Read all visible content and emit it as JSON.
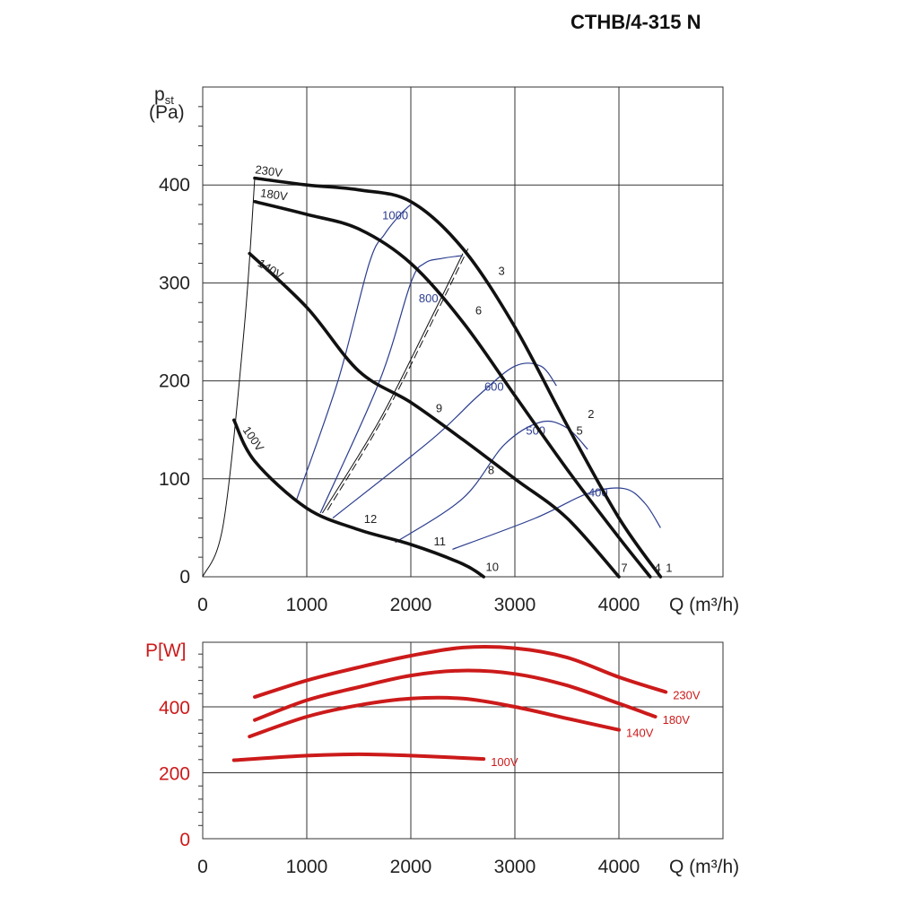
{
  "title": "CTHB/4-315 N",
  "chart_data": [
    {
      "type": "line",
      "ylabel": "p_st",
      "ylabel_main": "p",
      "ylabel_sub": "st",
      "yunit": "(Pa)",
      "xlabel": "Q (m³/h)",
      "xlim": [
        0,
        5000
      ],
      "ylim": [
        0,
        500
      ],
      "x_ticks": [
        0,
        1000,
        2000,
        3000,
        4000
      ],
      "y_ticks": [
        0,
        100,
        200,
        300,
        400
      ],
      "grid": true,
      "colors": {
        "fan_curve": "#111111",
        "efficiency": "#2b3d8f",
        "system": "#111111"
      },
      "series": [
        {
          "name": "230V",
          "label_at": [
            500,
            412
          ],
          "x": [
            500,
            1000,
            1500,
            2000,
            2500,
            3000,
            3500,
            4000,
            4400
          ],
          "y": [
            407,
            400,
            395,
            383,
            335,
            255,
            155,
            60,
            0
          ]
        },
        {
          "name": "180V",
          "label_at": [
            550,
            388
          ],
          "x": [
            500,
            1000,
            1500,
            2000,
            2500,
            3000,
            3500,
            4000,
            4300
          ],
          "y": [
            383,
            370,
            355,
            320,
            260,
            185,
            110,
            40,
            0
          ]
        },
        {
          "name": "140V",
          "label_at": [
            520,
            318
          ],
          "x": [
            450,
            1000,
            1500,
            2000,
            2500,
            3000,
            3500,
            4000
          ],
          "y": [
            330,
            275,
            210,
            178,
            140,
            100,
            60,
            0
          ]
        },
        {
          "name": "100V",
          "label_at": [
            380,
            150
          ],
          "x": [
            300,
            500,
            1000,
            1500,
            2000,
            2500,
            2700
          ],
          "y": [
            160,
            118,
            70,
            48,
            33,
            13,
            0
          ]
        }
      ],
      "efficiency_curves": [
        {
          "label": "1000",
          "label_at": [
            1850,
            365
          ],
          "x": [
            900,
            1300,
            1600,
            1750,
            1900,
            2000
          ],
          "y": [
            78,
            200,
            320,
            350,
            370,
            380
          ]
        },
        {
          "label": "800",
          "label_at": [
            2170,
            280
          ],
          "x": [
            1130,
            1700,
            2000,
            2130,
            2300,
            2500
          ],
          "y": [
            65,
            200,
            300,
            320,
            325,
            328
          ]
        },
        {
          "label": "600",
          "label_at": [
            2800,
            190
          ],
          "x": [
            1250,
            2200,
            2650,
            3000,
            3250,
            3400
          ],
          "y": [
            60,
            140,
            185,
            215,
            215,
            195
          ]
        },
        {
          "label": "500",
          "label_at": [
            3200,
            145
          ],
          "x": [
            1850,
            2500,
            2900,
            3250,
            3500,
            3700
          ],
          "y": [
            35,
            80,
            135,
            158,
            152,
            130
          ]
        },
        {
          "label": "400",
          "label_at": [
            3800,
            82
          ],
          "x": [
            2400,
            3200,
            3700,
            4050,
            4250,
            4400
          ],
          "y": [
            28,
            60,
            85,
            90,
            75,
            50
          ]
        }
      ],
      "system_curves": [
        {
          "x": [
            0,
            200,
            400,
            500
          ],
          "y": [
            0,
            55,
            255,
            407
          ]
        },
        {
          "x": [
            1150,
            1700,
            2200,
            2500
          ],
          "y": [
            65,
            160,
            265,
            330
          ]
        },
        {
          "x": [
            1200,
            1750,
            2250,
            2550
          ],
          "y": [
            68,
            165,
            270,
            335
          ]
        }
      ],
      "point_labels": [
        {
          "text": "1",
          "at": [
            4450,
            5
          ]
        },
        {
          "text": "2",
          "at": [
            3700,
            162
          ]
        },
        {
          "text": "3",
          "at": [
            2840,
            308
          ]
        },
        {
          "text": "4",
          "at": [
            4340,
            5
          ]
        },
        {
          "text": "5",
          "at": [
            3590,
            145
          ]
        },
        {
          "text": "6",
          "at": [
            2620,
            268
          ]
        },
        {
          "text": "7",
          "at": [
            4020,
            5
          ]
        },
        {
          "text": "8",
          "at": [
            2740,
            105
          ]
        },
        {
          "text": "9",
          "at": [
            2240,
            168
          ]
        },
        {
          "text": "10",
          "at": [
            2720,
            6
          ]
        },
        {
          "text": "11",
          "at": [
            2220,
            32
          ]
        },
        {
          "text": "12",
          "at": [
            1550,
            55
          ]
        }
      ]
    },
    {
      "type": "line",
      "ylabel": "P[W]",
      "xlabel": "Q (m³/h)",
      "xlim": [
        0,
        5000
      ],
      "ylim": [
        0,
        600
      ],
      "x_ticks": [
        0,
        1000,
        2000,
        3000,
        4000
      ],
      "y_ticks": [
        0,
        200,
        400
      ],
      "grid": true,
      "colors": {
        "power": "#cc1a1a"
      },
      "series": [
        {
          "name": "230V",
          "x": [
            500,
            1000,
            1500,
            2000,
            2500,
            3000,
            3500,
            4000,
            4450
          ],
          "y": [
            430,
            480,
            520,
            555,
            580,
            578,
            550,
            490,
            445
          ]
        },
        {
          "name": "180V",
          "x": [
            500,
            1000,
            1500,
            2000,
            2500,
            3000,
            3500,
            4000,
            4350
          ],
          "y": [
            360,
            420,
            460,
            495,
            510,
            500,
            465,
            410,
            370
          ]
        },
        {
          "name": "140V",
          "x": [
            450,
            1000,
            1500,
            2000,
            2500,
            3000,
            3500,
            4000
          ],
          "y": [
            310,
            370,
            405,
            425,
            425,
            400,
            365,
            330
          ]
        },
        {
          "name": "100V",
          "x": [
            300,
            1000,
            1500,
            2000,
            2500,
            2700
          ],
          "y": [
            238,
            252,
            256,
            252,
            245,
            242
          ]
        }
      ]
    }
  ]
}
